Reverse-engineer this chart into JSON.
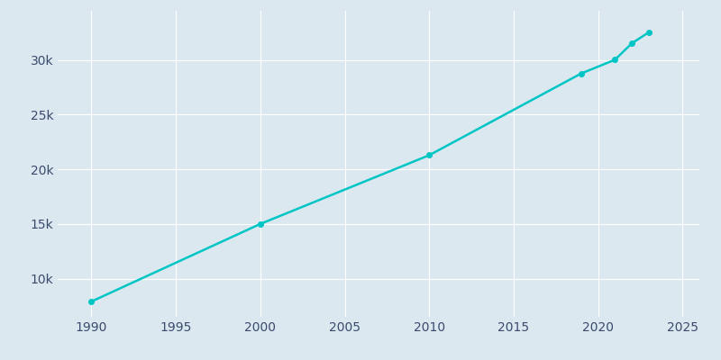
{
  "years": [
    1990,
    2000,
    2010,
    2019,
    2021,
    2022,
    2023
  ],
  "population": [
    7900,
    14996,
    21285,
    28763,
    30020,
    31522,
    32530
  ],
  "line_color": "#00C5C5",
  "marker_color": "#00C5C5",
  "background_color": "#dce8f0",
  "plot_bg_color": "#dce8f0",
  "grid_color": "#ffffff",
  "tick_color": "#3a4a6b",
  "xlim": [
    1988,
    2026
  ],
  "ylim": [
    6500,
    34500
  ],
  "xticks": [
    1990,
    1995,
    2000,
    2005,
    2010,
    2015,
    2020,
    2025
  ],
  "yticks": [
    10000,
    15000,
    20000,
    25000,
    30000
  ],
  "ytick_labels": [
    "10k",
    "15k",
    "20k",
    "25k",
    "30k"
  ],
  "line_width": 1.8,
  "marker_size": 4,
  "marker_style": "o"
}
